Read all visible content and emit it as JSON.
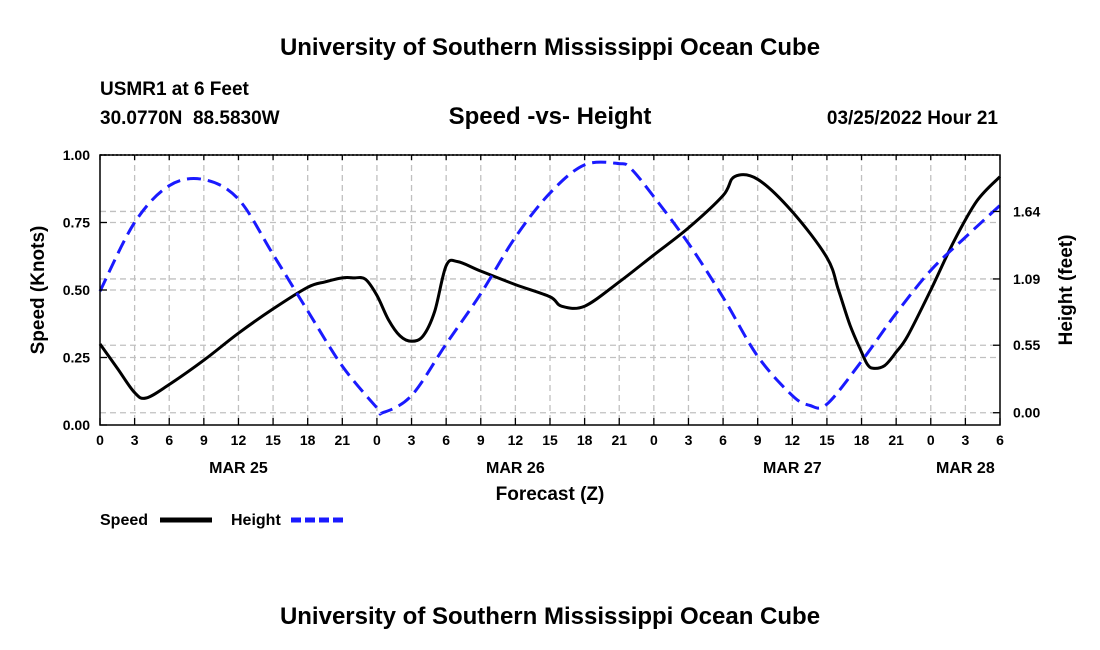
{
  "chart_data": {
    "type": "line",
    "title": "University of Southern Mississippi Ocean Cube",
    "footer_title": "University of Southern Mississippi Ocean Cube",
    "station": "USMR1 at 6 Feet",
    "coordinates": "30.0770N  88.5830W",
    "subtitle": "Speed -vs- Height",
    "timestamp": "03/25/2022 Hour 21",
    "xlabel": "Forecast (Z)",
    "ylabel_left": "Speed (Knots)",
    "ylabel_right": "Height (feet)",
    "xlim_hours": [
      0,
      78
    ],
    "ylim_left": [
      0,
      1
    ],
    "ylim_right": [
      -0.1,
      2.1
    ],
    "x_ticks": [
      {
        "hour": 0,
        "label": "0"
      },
      {
        "hour": 3,
        "label": "3"
      },
      {
        "hour": 6,
        "label": "6"
      },
      {
        "hour": 9,
        "label": "9"
      },
      {
        "hour": 12,
        "label": "12"
      },
      {
        "hour": 15,
        "label": "15"
      },
      {
        "hour": 18,
        "label": "18"
      },
      {
        "hour": 21,
        "label": "21"
      },
      {
        "hour": 24,
        "label": "0"
      },
      {
        "hour": 27,
        "label": "3"
      },
      {
        "hour": 30,
        "label": "6"
      },
      {
        "hour": 33,
        "label": "9"
      },
      {
        "hour": 36,
        "label": "12"
      },
      {
        "hour": 39,
        "label": "15"
      },
      {
        "hour": 42,
        "label": "18"
      },
      {
        "hour": 45,
        "label": "21"
      },
      {
        "hour": 48,
        "label": "0"
      },
      {
        "hour": 51,
        "label": "3"
      },
      {
        "hour": 54,
        "label": "6"
      },
      {
        "hour": 57,
        "label": "9"
      },
      {
        "hour": 60,
        "label": "12"
      },
      {
        "hour": 63,
        "label": "15"
      },
      {
        "hour": 66,
        "label": "18"
      },
      {
        "hour": 69,
        "label": "21"
      },
      {
        "hour": 72,
        "label": "0"
      },
      {
        "hour": 75,
        "label": "3"
      },
      {
        "hour": 78,
        "label": "6"
      }
    ],
    "date_labels": [
      {
        "hour": 12,
        "label": "MAR 25"
      },
      {
        "hour": 36,
        "label": "MAR 26"
      },
      {
        "hour": 60,
        "label": "MAR 27"
      },
      {
        "hour": 75,
        "label": "MAR 28"
      }
    ],
    "y_ticks_left": [
      {
        "value": 0.0,
        "label": "0.00"
      },
      {
        "value": 0.25,
        "label": "0.25"
      },
      {
        "value": 0.5,
        "label": "0.50"
      },
      {
        "value": 0.75,
        "label": "0.75"
      },
      {
        "value": 1.0,
        "label": "1.00"
      }
    ],
    "y_ticks_right": [
      {
        "value": 0.0,
        "label": "0.00"
      },
      {
        "value": 0.55,
        "label": "0.55"
      },
      {
        "value": 1.09,
        "label": "1.09"
      },
      {
        "value": 1.64,
        "label": "1.64"
      }
    ],
    "series": [
      {
        "name": "Speed",
        "axis": "left",
        "color": "#000000",
        "style": "solid",
        "x": [
          0,
          1.5,
          3,
          4,
          6,
          9,
          12,
          15,
          18,
          19.5,
          21,
          22,
          23,
          24,
          25,
          26,
          27,
          28,
          29,
          30,
          31,
          33,
          36,
          39,
          40,
          42,
          45,
          48,
          51,
          54,
          55,
          57,
          60,
          63,
          64,
          65,
          66,
          66.5,
          67,
          68,
          69,
          70,
          72,
          74,
          76,
          78
        ],
        "values": [
          0.3,
          0.21,
          0.12,
          0.1,
          0.15,
          0.24,
          0.34,
          0.43,
          0.51,
          0.53,
          0.545,
          0.545,
          0.54,
          0.48,
          0.39,
          0.33,
          0.31,
          0.33,
          0.42,
          0.59,
          0.605,
          0.57,
          0.52,
          0.475,
          0.44,
          0.44,
          0.53,
          0.63,
          0.73,
          0.85,
          0.92,
          0.91,
          0.79,
          0.62,
          0.5,
          0.37,
          0.27,
          0.225,
          0.21,
          0.22,
          0.27,
          0.33,
          0.5,
          0.68,
          0.83,
          0.92
        ]
      },
      {
        "name": "Height",
        "axis": "right",
        "color": "#1a1aff",
        "style": "dashed",
        "x": [
          0,
          3,
          6,
          9,
          12,
          15,
          18,
          21,
          24,
          24.5,
          27,
          30,
          33,
          36,
          39,
          42,
          45,
          46,
          48,
          51,
          54,
          57,
          60,
          61.5,
          63,
          66,
          69,
          72,
          75,
          78
        ],
        "values": [
          0.99,
          1.55,
          1.85,
          1.9,
          1.74,
          1.29,
          0.83,
          0.38,
          0.04,
          0.0,
          0.14,
          0.56,
          0.97,
          1.43,
          1.79,
          2.02,
          2.03,
          1.99,
          1.76,
          1.38,
          0.94,
          0.46,
          0.14,
          0.06,
          0.07,
          0.42,
          0.81,
          1.16,
          1.43,
          1.69
        ]
      }
    ],
    "legend": [
      {
        "label": "Speed",
        "color": "#000000",
        "style": "solid"
      },
      {
        "label": "Height",
        "color": "#1a1aff",
        "style": "dashed"
      }
    ]
  }
}
